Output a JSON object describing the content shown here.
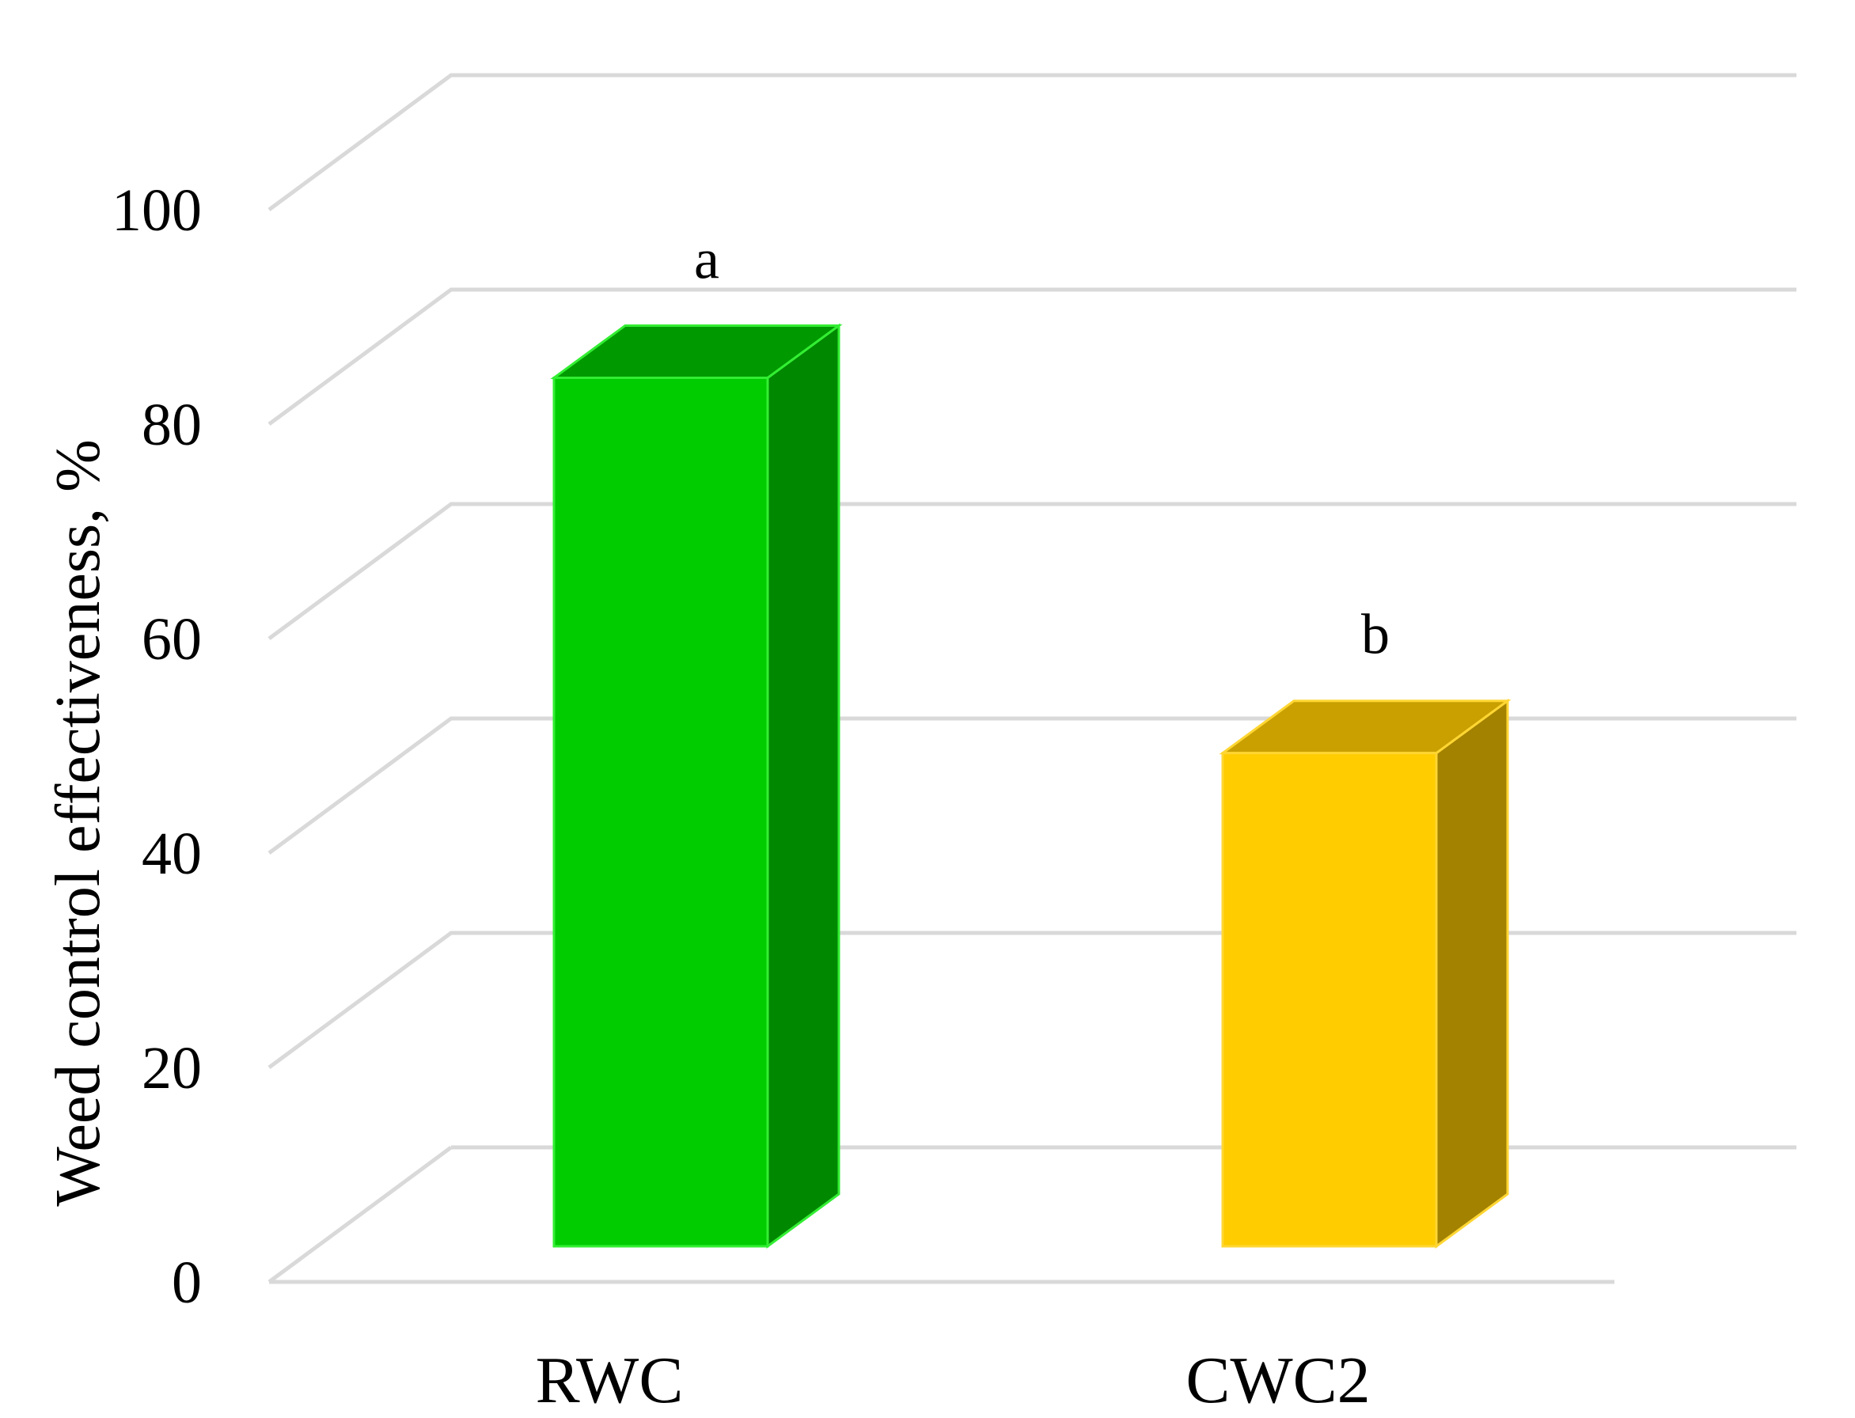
{
  "chart_data": {
    "type": "bar",
    "title": "",
    "xlabel": "",
    "ylabel": "Weed control effectiveness, %",
    "ylim": [
      0,
      100
    ],
    "yticks": [
      0,
      20,
      40,
      60,
      80,
      100
    ],
    "categories": [
      "RWC",
      "CWC2"
    ],
    "values": [
      81,
      46
    ],
    "data_labels": [
      "a",
      "b"
    ],
    "colors": {
      "RWC": {
        "front": "#00CC00",
        "side": "#008800",
        "top": "#009900",
        "edge": "#33EE33"
      },
      "CWC2": {
        "front": "#FFCC00",
        "side": "#A38200",
        "top": "#C9A000",
        "edge": "#FFD633"
      }
    },
    "grid": true,
    "gridline_color": "#D9D9D9",
    "style": "3d-column",
    "legend": "none"
  }
}
